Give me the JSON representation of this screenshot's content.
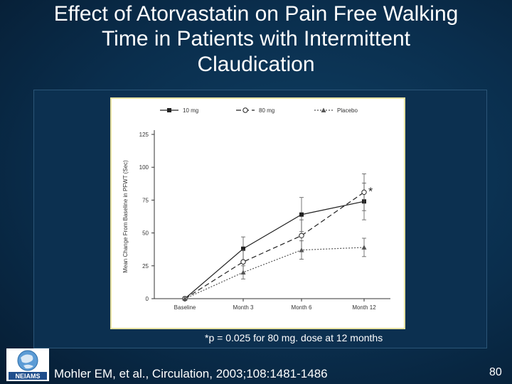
{
  "slide": {
    "title_lines": [
      "Effect of Atorvastatin on Pain Free Walking",
      "Time in Patients with Intermittent",
      "Claudication"
    ],
    "footnote": "*p = 0.025 for 80 mg. dose at 12 months",
    "citation": "Mohler EM, et al., Circulation, 2003;108:1481-1486",
    "slide_number": "80",
    "logo_text": "NEIAMS"
  },
  "chart_data": {
    "type": "line",
    "title": "",
    "xlabel": "",
    "ylabel": "Mean Change From Baseline in PFWT (Sec)",
    "categories": [
      "Baseline",
      "Month 3",
      "Month 6",
      "Month 12"
    ],
    "ylim": [
      0,
      125
    ],
    "yticks": [
      0,
      25,
      50,
      75,
      100,
      125
    ],
    "legend_position": "top",
    "series": [
      {
        "name": "10 mg",
        "values": [
          0,
          38,
          64,
          74
        ],
        "errors": [
          0,
          9,
          13,
          14
        ],
        "line_style": "solid",
        "marker": "square-filled",
        "color": "#222222"
      },
      {
        "name": "80 mg",
        "values": [
          0,
          28,
          48,
          81
        ],
        "errors": [
          0,
          9,
          12,
          14
        ],
        "line_style": "dashed",
        "marker": "circle-open",
        "color": "#222222"
      },
      {
        "name": "Placebo",
        "values": [
          0,
          20,
          37,
          39
        ],
        "errors": [
          0,
          5,
          7,
          7
        ],
        "line_style": "dotted",
        "marker": "triangle-filled",
        "color": "#555555"
      }
    ],
    "annotations": [
      {
        "text": "*",
        "category": "Month 12",
        "series": "80 mg"
      }
    ]
  }
}
